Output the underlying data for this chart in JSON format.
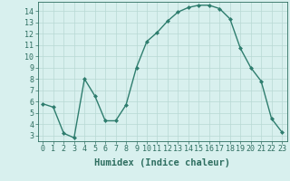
{
  "x": [
    0,
    1,
    2,
    3,
    4,
    5,
    6,
    7,
    8,
    9,
    10,
    11,
    12,
    13,
    14,
    15,
    16,
    17,
    18,
    19,
    20,
    21,
    22,
    23
  ],
  "y": [
    5.8,
    5.5,
    3.2,
    2.8,
    8.0,
    6.5,
    4.3,
    4.3,
    5.7,
    9.0,
    11.3,
    12.1,
    13.1,
    13.9,
    14.3,
    14.5,
    14.5,
    14.2,
    13.3,
    10.7,
    9.0,
    7.8,
    4.5,
    3.3
  ],
  "line_color": "#2e7d6e",
  "marker": "D",
  "marker_size": 2.0,
  "bg_color": "#d8f0ee",
  "grid_color": "#b8d8d4",
  "xlabel": "Humidex (Indice chaleur)",
  "xlim": [
    -0.5,
    23.5
  ],
  "ylim": [
    2.5,
    14.8
  ],
  "yticks": [
    3,
    4,
    5,
    6,
    7,
    8,
    9,
    10,
    11,
    12,
    13,
    14
  ],
  "xticks": [
    0,
    1,
    2,
    3,
    4,
    5,
    6,
    7,
    8,
    9,
    10,
    11,
    12,
    13,
    14,
    15,
    16,
    17,
    18,
    19,
    20,
    21,
    22,
    23
  ],
  "xlabel_fontsize": 7.5,
  "tick_fontsize": 6.0,
  "axis_color": "#2e6e60",
  "linewidth": 1.0
}
